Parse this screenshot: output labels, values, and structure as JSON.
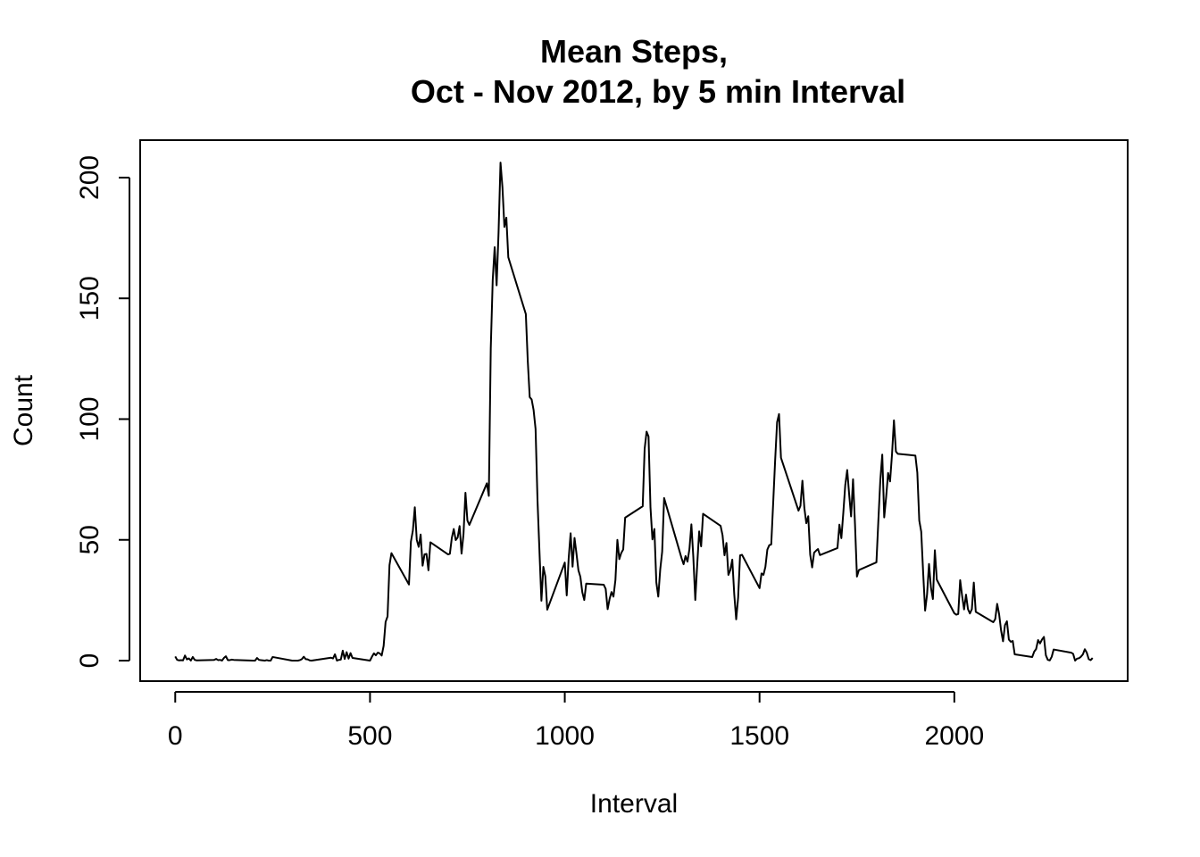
{
  "chart_data": {
    "type": "line",
    "title_line1": "Mean Steps,",
    "title_line2": "Oct - Nov 2012, by 5 min Interval",
    "xlabel": "Interval",
    "ylabel": "Count",
    "xlim": [
      -90,
      2445
    ],
    "ylim": [
      -8.5,
      215.5
    ],
    "x_ticks": [
      0,
      500,
      1000,
      1500,
      2000
    ],
    "y_ticks": [
      0,
      50,
      100,
      150,
      200
    ],
    "x_tick_labels": [
      "0",
      "500",
      "1000",
      "1500",
      "2000"
    ],
    "y_tick_labels": [
      "0",
      "50",
      "100",
      "150",
      "200"
    ],
    "series": [
      {
        "color": "#000000",
        "points": [
          [
            0,
            1.7
          ],
          [
            5,
            0.3
          ],
          [
            10,
            0.1
          ],
          [
            15,
            0.2
          ],
          [
            20,
            0.1
          ],
          [
            25,
            2.1
          ],
          [
            30,
            0.5
          ],
          [
            35,
            0.9
          ],
          [
            40,
            0.0
          ],
          [
            45,
            1.5
          ],
          [
            50,
            0.3
          ],
          [
            55,
            0.1
          ],
          [
            100,
            0.3
          ],
          [
            105,
            0.7
          ],
          [
            110,
            0.2
          ],
          [
            115,
            0.3
          ],
          [
            120,
            0.0
          ],
          [
            125,
            1.1
          ],
          [
            130,
            1.8
          ],
          [
            135,
            0.2
          ],
          [
            140,
            0.2
          ],
          [
            145,
            0.4
          ],
          [
            150,
            0.3
          ],
          [
            200,
            0.0
          ],
          [
            205,
            0.0
          ],
          [
            210,
            1.1
          ],
          [
            215,
            0.3
          ],
          [
            220,
            0.2
          ],
          [
            225,
            0.1
          ],
          [
            230,
            0.0
          ],
          [
            235,
            0.2
          ],
          [
            240,
            0.0
          ],
          [
            245,
            0.0
          ],
          [
            250,
            1.5
          ],
          [
            300,
            0.0
          ],
          [
            305,
            0.0
          ],
          [
            310,
            0.0
          ],
          [
            315,
            0.0
          ],
          [
            320,
            0.2
          ],
          [
            325,
            0.6
          ],
          [
            330,
            1.6
          ],
          [
            335,
            0.6
          ],
          [
            340,
            0.5
          ],
          [
            345,
            0.1
          ],
          [
            350,
            0.0
          ],
          [
            400,
            1.2
          ],
          [
            405,
            0.9
          ],
          [
            410,
            2.6
          ],
          [
            415,
            0.0
          ],
          [
            420,
            0.3
          ],
          [
            425,
            0.4
          ],
          [
            430,
            4.1
          ],
          [
            435,
            0.7
          ],
          [
            440,
            3.5
          ],
          [
            445,
            0.8
          ],
          [
            450,
            3.1
          ],
          [
            455,
            1.1
          ],
          [
            500,
            0.0
          ],
          [
            505,
            1.6
          ],
          [
            510,
            3.0
          ],
          [
            515,
            2.2
          ],
          [
            520,
            3.3
          ],
          [
            525,
            3.0
          ],
          [
            530,
            2.1
          ],
          [
            535,
            6.1
          ],
          [
            540,
            16.0
          ],
          [
            545,
            18.3
          ],
          [
            550,
            39.5
          ],
          [
            555,
            44.5
          ],
          [
            600,
            31.5
          ],
          [
            605,
            49.3
          ],
          [
            610,
            53.8
          ],
          [
            615,
            63.5
          ],
          [
            620,
            50.0
          ],
          [
            625,
            47.1
          ],
          [
            630,
            52.2
          ],
          [
            635,
            39.3
          ],
          [
            640,
            44.0
          ],
          [
            645,
            44.2
          ],
          [
            650,
            37.4
          ],
          [
            655,
            49.0
          ],
          [
            700,
            44.0
          ],
          [
            705,
            44.2
          ],
          [
            710,
            50.8
          ],
          [
            715,
            54.5
          ],
          [
            720,
            49.9
          ],
          [
            725,
            51.0
          ],
          [
            730,
            55.7
          ],
          [
            735,
            44.3
          ],
          [
            740,
            52.3
          ],
          [
            745,
            69.5
          ],
          [
            750,
            58.0
          ],
          [
            755,
            56.2
          ],
          [
            800,
            73.4
          ],
          [
            805,
            68.2
          ],
          [
            810,
            129.4
          ],
          [
            815,
            157.5
          ],
          [
            820,
            171.2
          ],
          [
            825,
            155.4
          ],
          [
            830,
            177.3
          ],
          [
            835,
            206.2
          ],
          [
            840,
            195.9
          ],
          [
            845,
            179.6
          ],
          [
            850,
            183.4
          ],
          [
            855,
            167.0
          ],
          [
            900,
            143.5
          ],
          [
            905,
            124.0
          ],
          [
            910,
            109.1
          ],
          [
            915,
            108.1
          ],
          [
            920,
            103.7
          ],
          [
            925,
            95.9
          ],
          [
            930,
            66.2
          ],
          [
            935,
            45.2
          ],
          [
            940,
            24.8
          ],
          [
            945,
            38.8
          ],
          [
            950,
            34.9
          ],
          [
            955,
            21.1
          ],
          [
            1000,
            40.6
          ],
          [
            1005,
            27.0
          ],
          [
            1010,
            42.4
          ],
          [
            1015,
            52.7
          ],
          [
            1020,
            38.9
          ],
          [
            1025,
            50.8
          ],
          [
            1030,
            44.3
          ],
          [
            1035,
            37.4
          ],
          [
            1040,
            34.7
          ],
          [
            1045,
            28.3
          ],
          [
            1050,
            25.1
          ],
          [
            1055,
            31.9
          ],
          [
            1100,
            31.4
          ],
          [
            1105,
            29.7
          ],
          [
            1110,
            21.3
          ],
          [
            1115,
            25.5
          ],
          [
            1120,
            28.4
          ],
          [
            1125,
            26.5
          ],
          [
            1130,
            33.4
          ],
          [
            1135,
            50.0
          ],
          [
            1140,
            42.0
          ],
          [
            1145,
            44.6
          ],
          [
            1150,
            46.0
          ],
          [
            1155,
            59.2
          ],
          [
            1200,
            63.9
          ],
          [
            1205,
            87.7
          ],
          [
            1210,
            94.8
          ],
          [
            1215,
            92.8
          ],
          [
            1220,
            63.4
          ],
          [
            1225,
            50.2
          ],
          [
            1230,
            54.5
          ],
          [
            1235,
            32.4
          ],
          [
            1240,
            26.5
          ],
          [
            1245,
            37.7
          ],
          [
            1250,
            45.1
          ],
          [
            1255,
            67.3
          ],
          [
            1300,
            42.3
          ],
          [
            1305,
            39.9
          ],
          [
            1310,
            43.3
          ],
          [
            1315,
            40.98
          ],
          [
            1320,
            46.2
          ],
          [
            1325,
            56.4
          ],
          [
            1330,
            42.8
          ],
          [
            1335,
            25.1
          ],
          [
            1340,
            39.9
          ],
          [
            1345,
            53.5
          ],
          [
            1350,
            47.3
          ],
          [
            1355,
            60.8
          ],
          [
            1400,
            55.8
          ],
          [
            1405,
            51.9
          ],
          [
            1410,
            43.6
          ],
          [
            1415,
            48.7
          ],
          [
            1420,
            35.5
          ],
          [
            1425,
            37.5
          ],
          [
            1430,
            41.8
          ],
          [
            1435,
            27.5
          ],
          [
            1440,
            17.1
          ],
          [
            1445,
            26.1
          ],
          [
            1450,
            43.6
          ],
          [
            1455,
            43.8
          ],
          [
            1500,
            30.0
          ],
          [
            1505,
            36.1
          ],
          [
            1510,
            35.5
          ],
          [
            1515,
            38.8
          ],
          [
            1520,
            45.96
          ],
          [
            1525,
            47.8
          ],
          [
            1530,
            48.1
          ],
          [
            1535,
            65.3
          ],
          [
            1540,
            82.9
          ],
          [
            1545,
            98.7
          ],
          [
            1550,
            102.1
          ],
          [
            1555,
            83.96
          ],
          [
            1600,
            62.1
          ],
          [
            1605,
            64.1
          ],
          [
            1610,
            74.5
          ],
          [
            1615,
            63.2
          ],
          [
            1620,
            56.9
          ],
          [
            1625,
            59.8
          ],
          [
            1630,
            43.9
          ],
          [
            1635,
            38.6
          ],
          [
            1640,
            44.7
          ],
          [
            1645,
            45.5
          ],
          [
            1650,
            46.2
          ],
          [
            1655,
            43.7
          ],
          [
            1700,
            46.6
          ],
          [
            1705,
            56.3
          ],
          [
            1710,
            50.7
          ],
          [
            1715,
            61.2
          ],
          [
            1720,
            72.7
          ],
          [
            1725,
            78.9
          ],
          [
            1730,
            68.9
          ],
          [
            1735,
            59.7
          ],
          [
            1740,
            75.1
          ],
          [
            1745,
            56.5
          ],
          [
            1750,
            34.8
          ],
          [
            1755,
            37.5
          ],
          [
            1800,
            40.7
          ],
          [
            1805,
            58.0
          ],
          [
            1810,
            74.7
          ],
          [
            1815,
            85.3
          ],
          [
            1820,
            59.3
          ],
          [
            1825,
            67.8
          ],
          [
            1830,
            77.7
          ],
          [
            1835,
            74.2
          ],
          [
            1840,
            85.3
          ],
          [
            1845,
            99.5
          ],
          [
            1850,
            86.6
          ],
          [
            1855,
            85.6
          ],
          [
            1900,
            84.9
          ],
          [
            1905,
            77.8
          ],
          [
            1910,
            58.0
          ],
          [
            1915,
            53.4
          ],
          [
            1920,
            36.3
          ],
          [
            1925,
            20.7
          ],
          [
            1930,
            27.4
          ],
          [
            1935,
            40.0
          ],
          [
            1940,
            30.2
          ],
          [
            1945,
            25.5
          ],
          [
            1950,
            45.7
          ],
          [
            1955,
            33.5
          ],
          [
            2000,
            19.6
          ],
          [
            2005,
            19.0
          ],
          [
            2010,
            19.3
          ],
          [
            2015,
            33.3
          ],
          [
            2020,
            26.8
          ],
          [
            2025,
            21.2
          ],
          [
            2030,
            27.3
          ],
          [
            2035,
            21.3
          ],
          [
            2040,
            19.5
          ],
          [
            2045,
            21.3
          ],
          [
            2050,
            32.3
          ],
          [
            2055,
            20.2
          ],
          [
            2100,
            15.9
          ],
          [
            2105,
            17.2
          ],
          [
            2110,
            23.5
          ],
          [
            2115,
            19.2
          ],
          [
            2120,
            12.5
          ],
          [
            2125,
            8.0
          ],
          [
            2130,
            14.7
          ],
          [
            2135,
            16.3
          ],
          [
            2140,
            8.7
          ],
          [
            2145,
            7.8
          ],
          [
            2150,
            8.1
          ],
          [
            2155,
            2.6
          ],
          [
            2200,
            1.5
          ],
          [
            2205,
            3.7
          ],
          [
            2210,
            4.8
          ],
          [
            2215,
            8.5
          ],
          [
            2220,
            7.1
          ],
          [
            2225,
            8.7
          ],
          [
            2230,
            9.8
          ],
          [
            2235,
            2.2
          ],
          [
            2240,
            0.3
          ],
          [
            2245,
            0.1
          ],
          [
            2250,
            1.6
          ],
          [
            2255,
            4.6
          ],
          [
            2300,
            3.3
          ],
          [
            2305,
            2.8
          ],
          [
            2310,
            0.0
          ],
          [
            2315,
            0.8
          ],
          [
            2320,
            1.0
          ],
          [
            2325,
            1.6
          ],
          [
            2330,
            2.6
          ],
          [
            2335,
            4.7
          ],
          [
            2340,
            3.3
          ],
          [
            2345,
            0.6
          ],
          [
            2350,
            0.2
          ],
          [
            2355,
            1.1
          ]
        ]
      }
    ],
    "grid": false,
    "box": true
  }
}
